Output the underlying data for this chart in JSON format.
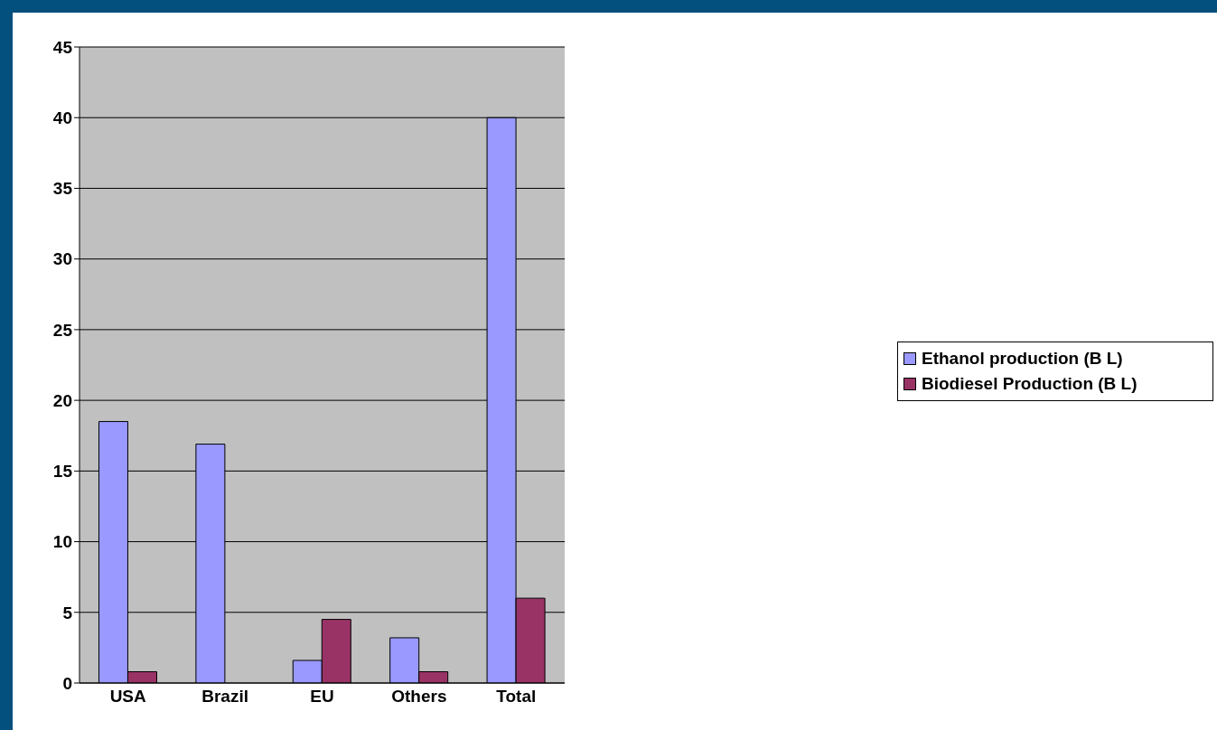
{
  "chart_data": {
    "type": "bar",
    "categories": [
      "USA",
      "Brazil",
      "EU",
      "Others",
      "Total"
    ],
    "series": [
      {
        "name": "Ethanol production (B L)",
        "color": "#9999ff",
        "values": [
          18.5,
          16.9,
          1.6,
          3.2,
          40
        ]
      },
      {
        "name": "Biodiesel Production (B L)",
        "color": "#993366",
        "values": [
          0.8,
          0,
          4.5,
          0.8,
          6
        ]
      }
    ],
    "ylim": [
      0,
      45
    ],
    "yticks": [
      0,
      5,
      10,
      15,
      20,
      25,
      30,
      35,
      40,
      45
    ],
    "grid": "y",
    "legend": "right"
  }
}
